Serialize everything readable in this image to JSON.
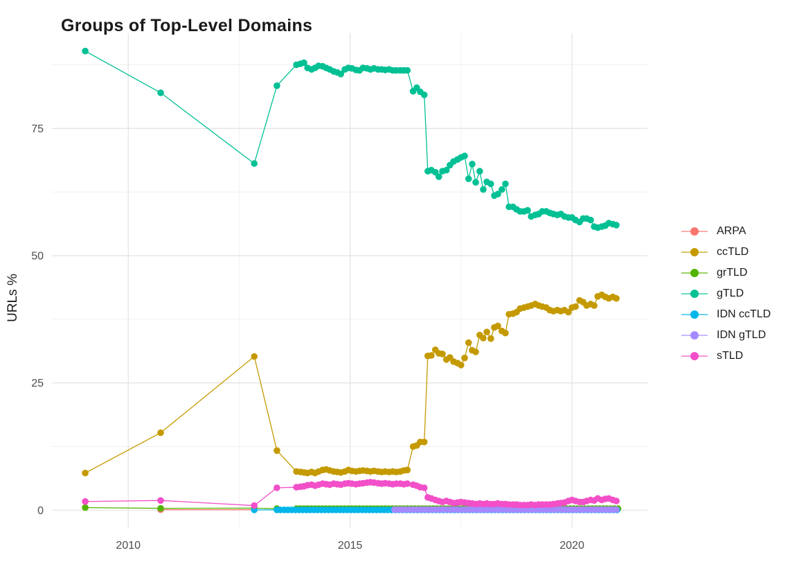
{
  "window": {
    "background": "#ffffff"
  },
  "header": {
    "title": "Groups of Top-Level Domains"
  },
  "chart_data": {
    "type": "line",
    "title": "Groups of Top-Level Domains",
    "xlabel": "",
    "ylabel": "URLs %",
    "xlim": [
      2008.28,
      2021.7
    ],
    "ylim": [
      -3.5,
      93.7
    ],
    "x_major_ticks": [
      2010,
      2015,
      2020
    ],
    "x_minor_ticks": [
      2012.5,
      2017.5
    ],
    "y_major_ticks": [
      0,
      25,
      50,
      75
    ],
    "y_minor_ticks": [
      12.5,
      37.5,
      62.5,
      87.5
    ],
    "grid": "major+minor",
    "legend_position": "right-middle",
    "style": {
      "major_grid_color": "#e2e2e2",
      "minor_grid_color": "#f0f0f0",
      "tick_label_color": "#4d4d4d",
      "point_radius": 4.8,
      "line_width": 1.3
    },
    "series": [
      {
        "name": "ARPA",
        "color": "#F8766D",
        "points": [
          [
            2010.73,
            0.1
          ],
          [
            2012.84,
            0.1
          ]
        ]
      },
      {
        "name": "ccTLD",
        "color": "#C49A00",
        "points": [
          [
            2009.03,
            7.3
          ],
          [
            2010.73,
            15.2
          ],
          [
            2012.84,
            30.2
          ],
          [
            2013.35,
            11.7
          ],
          [
            2013.79,
            7.6
          ],
          [
            2013.88,
            7.5
          ],
          [
            2013.96,
            7.4
          ],
          [
            2014.04,
            7.3
          ],
          [
            2014.13,
            7.5
          ],
          [
            2014.21,
            7.3
          ],
          [
            2014.29,
            7.6
          ],
          [
            2014.38,
            7.9
          ],
          [
            2014.46,
            8.0
          ],
          [
            2014.54,
            7.8
          ],
          [
            2014.63,
            7.6
          ],
          [
            2014.71,
            7.5
          ],
          [
            2014.79,
            7.4
          ],
          [
            2014.88,
            7.6
          ],
          [
            2014.96,
            7.9
          ],
          [
            2015.04,
            7.7
          ],
          [
            2015.13,
            7.6
          ],
          [
            2015.21,
            7.7
          ],
          [
            2015.29,
            7.8
          ],
          [
            2015.38,
            7.7
          ],
          [
            2015.46,
            7.6
          ],
          [
            2015.54,
            7.7
          ],
          [
            2015.63,
            7.6
          ],
          [
            2015.71,
            7.5
          ],
          [
            2015.79,
            7.6
          ],
          [
            2015.88,
            7.5
          ],
          [
            2015.96,
            7.6
          ],
          [
            2016.04,
            7.5
          ],
          [
            2016.13,
            7.6
          ],
          [
            2016.21,
            7.8
          ],
          [
            2016.29,
            7.9
          ],
          [
            2016.42,
            12.5
          ],
          [
            2016.5,
            12.7
          ],
          [
            2016.58,
            13.4
          ],
          [
            2016.67,
            13.4
          ],
          [
            2016.75,
            30.3
          ],
          [
            2016.83,
            30.4
          ],
          [
            2016.92,
            31.5
          ],
          [
            2017.0,
            30.8
          ],
          [
            2017.08,
            30.7
          ],
          [
            2017.17,
            29.6
          ],
          [
            2017.25,
            30.0
          ],
          [
            2017.33,
            29.2
          ],
          [
            2017.42,
            28.9
          ],
          [
            2017.5,
            28.5
          ],
          [
            2017.58,
            29.9
          ],
          [
            2017.67,
            32.9
          ],
          [
            2017.75,
            31.4
          ],
          [
            2017.83,
            31.1
          ],
          [
            2017.92,
            34.4
          ],
          [
            2018.0,
            33.8
          ],
          [
            2018.08,
            35.0
          ],
          [
            2018.17,
            33.7
          ],
          [
            2018.25,
            35.9
          ],
          [
            2018.33,
            36.2
          ],
          [
            2018.42,
            35.2
          ],
          [
            2018.5,
            34.8
          ],
          [
            2018.58,
            38.5
          ],
          [
            2018.67,
            38.6
          ],
          [
            2018.75,
            38.9
          ],
          [
            2018.83,
            39.6
          ],
          [
            2018.92,
            39.8
          ],
          [
            2019.0,
            40.0
          ],
          [
            2019.08,
            40.2
          ],
          [
            2019.17,
            40.5
          ],
          [
            2019.25,
            40.2
          ],
          [
            2019.33,
            40.0
          ],
          [
            2019.42,
            39.8
          ],
          [
            2019.5,
            39.3
          ],
          [
            2019.58,
            39.1
          ],
          [
            2019.67,
            39.3
          ],
          [
            2019.75,
            39.1
          ],
          [
            2019.83,
            39.3
          ],
          [
            2019.92,
            38.9
          ],
          [
            2020.0,
            39.8
          ],
          [
            2020.08,
            40.0
          ],
          [
            2020.17,
            41.2
          ],
          [
            2020.25,
            40.9
          ],
          [
            2020.33,
            40.2
          ],
          [
            2020.42,
            40.5
          ],
          [
            2020.5,
            40.2
          ],
          [
            2020.58,
            42.0
          ],
          [
            2020.67,
            42.3
          ],
          [
            2020.75,
            41.9
          ],
          [
            2020.83,
            41.6
          ],
          [
            2020.92,
            41.9
          ],
          [
            2021.0,
            41.6
          ]
        ]
      },
      {
        "name": "grTLD",
        "color": "#53B400",
        "points": [
          [
            2009.03,
            0.5
          ],
          [
            2010.73,
            0.35
          ],
          [
            2012.84,
            0.4
          ],
          [
            2013.35,
            0.3
          ]
        ],
        "fill": {
          "from": 2013.79,
          "to": 2021.0,
          "step": 0.0833,
          "value": 0.3
        }
      },
      {
        "name": "gTLD",
        "color": "#00C094",
        "points": [
          [
            2009.03,
            90.2
          ],
          [
            2010.73,
            82.0
          ],
          [
            2012.84,
            68.1
          ],
          [
            2013.35,
            83.4
          ],
          [
            2013.79,
            87.5
          ],
          [
            2013.88,
            87.7
          ],
          [
            2013.96,
            87.9
          ],
          [
            2014.04,
            86.9
          ],
          [
            2014.13,
            86.6
          ],
          [
            2014.21,
            86.9
          ],
          [
            2014.29,
            87.3
          ],
          [
            2014.38,
            87.2
          ],
          [
            2014.46,
            86.9
          ],
          [
            2014.54,
            86.6
          ],
          [
            2014.63,
            86.2
          ],
          [
            2014.71,
            86.0
          ],
          [
            2014.79,
            85.7
          ],
          [
            2014.88,
            86.6
          ],
          [
            2014.96,
            86.9
          ],
          [
            2015.04,
            86.8
          ],
          [
            2015.13,
            86.5
          ],
          [
            2015.21,
            86.4
          ],
          [
            2015.29,
            86.9
          ],
          [
            2015.38,
            86.8
          ],
          [
            2015.46,
            86.6
          ],
          [
            2015.54,
            86.8
          ],
          [
            2015.63,
            86.6
          ],
          [
            2015.71,
            86.6
          ],
          [
            2015.79,
            86.5
          ],
          [
            2015.88,
            86.6
          ],
          [
            2015.96,
            86.4
          ],
          [
            2016.04,
            86.4
          ],
          [
            2016.13,
            86.4
          ],
          [
            2016.21,
            86.4
          ],
          [
            2016.29,
            86.4
          ],
          [
            2016.42,
            82.3
          ],
          [
            2016.5,
            83.0
          ],
          [
            2016.58,
            82.2
          ],
          [
            2016.67,
            81.6
          ],
          [
            2016.75,
            66.6
          ],
          [
            2016.83,
            66.8
          ],
          [
            2016.92,
            66.4
          ],
          [
            2017.0,
            65.5
          ],
          [
            2017.08,
            66.6
          ],
          [
            2017.17,
            66.8
          ],
          [
            2017.25,
            67.8
          ],
          [
            2017.33,
            68.5
          ],
          [
            2017.42,
            68.9
          ],
          [
            2017.5,
            69.3
          ],
          [
            2017.58,
            69.6
          ],
          [
            2017.67,
            65.1
          ],
          [
            2017.75,
            68.0
          ],
          [
            2017.83,
            64.4
          ],
          [
            2017.92,
            66.6
          ],
          [
            2018.0,
            63.0
          ],
          [
            2018.08,
            64.5
          ],
          [
            2018.17,
            64.1
          ],
          [
            2018.25,
            61.8
          ],
          [
            2018.33,
            62.1
          ],
          [
            2018.42,
            63.0
          ],
          [
            2018.5,
            64.1
          ],
          [
            2018.58,
            59.6
          ],
          [
            2018.67,
            59.6
          ],
          [
            2018.75,
            59.1
          ],
          [
            2018.83,
            58.7
          ],
          [
            2018.92,
            58.7
          ],
          [
            2019.0,
            58.9
          ],
          [
            2019.08,
            57.7
          ],
          [
            2019.17,
            58.0
          ],
          [
            2019.25,
            58.2
          ],
          [
            2019.33,
            58.7
          ],
          [
            2019.42,
            58.7
          ],
          [
            2019.5,
            58.4
          ],
          [
            2019.58,
            58.2
          ],
          [
            2019.67,
            58.0
          ],
          [
            2019.75,
            58.2
          ],
          [
            2019.83,
            57.7
          ],
          [
            2019.92,
            57.5
          ],
          [
            2020.0,
            57.5
          ],
          [
            2020.08,
            57.0
          ],
          [
            2020.17,
            56.6
          ],
          [
            2020.25,
            57.3
          ],
          [
            2020.33,
            57.3
          ],
          [
            2020.42,
            57.0
          ],
          [
            2020.5,
            55.7
          ],
          [
            2020.58,
            55.5
          ],
          [
            2020.67,
            55.7
          ],
          [
            2020.75,
            55.9
          ],
          [
            2020.83,
            56.4
          ],
          [
            2020.92,
            56.2
          ],
          [
            2021.0,
            56.0
          ]
        ]
      },
      {
        "name": "IDN ccTLD",
        "color": "#00B6EB",
        "points": [
          [
            2012.84,
            0.05
          ]
        ],
        "fill": {
          "from": 2013.35,
          "to": 2021.0,
          "step": 0.0833,
          "value": 0.05
        }
      },
      {
        "name": "IDN gTLD",
        "color": "#A58AFF",
        "points": [],
        "fill": {
          "from": 2016.0,
          "to": 2021.0,
          "step": 0.0833,
          "value": 0.12
        }
      },
      {
        "name": "sTLD",
        "color": "#F24FC8",
        "points": [
          [
            2009.03,
            1.7
          ],
          [
            2010.73,
            1.9
          ],
          [
            2012.84,
            0.9
          ],
          [
            2013.35,
            4.4
          ],
          [
            2013.79,
            4.5
          ],
          [
            2013.88,
            4.6
          ],
          [
            2013.96,
            4.7
          ],
          [
            2014.04,
            4.9
          ],
          [
            2014.13,
            5.0
          ],
          [
            2014.21,
            4.8
          ],
          [
            2014.29,
            5.0
          ],
          [
            2014.38,
            5.2
          ],
          [
            2014.46,
            5.1
          ],
          [
            2014.54,
            5.0
          ],
          [
            2014.63,
            5.2
          ],
          [
            2014.71,
            5.1
          ],
          [
            2014.79,
            5.0
          ],
          [
            2014.88,
            5.2
          ],
          [
            2014.96,
            5.3
          ],
          [
            2015.04,
            5.2
          ],
          [
            2015.13,
            5.1
          ],
          [
            2015.21,
            5.2
          ],
          [
            2015.29,
            5.3
          ],
          [
            2015.38,
            5.4
          ],
          [
            2015.46,
            5.5
          ],
          [
            2015.54,
            5.4
          ],
          [
            2015.63,
            5.3
          ],
          [
            2015.71,
            5.2
          ],
          [
            2015.79,
            5.3
          ],
          [
            2015.88,
            5.2
          ],
          [
            2015.96,
            5.1
          ],
          [
            2016.04,
            5.2
          ],
          [
            2016.13,
            5.2
          ],
          [
            2016.21,
            5.1
          ],
          [
            2016.29,
            5.2
          ],
          [
            2016.42,
            5.0
          ],
          [
            2016.5,
            4.8
          ],
          [
            2016.58,
            4.5
          ],
          [
            2016.67,
            4.4
          ],
          [
            2016.75,
            2.5
          ],
          [
            2016.83,
            2.3
          ],
          [
            2016.92,
            2.0
          ],
          [
            2017.0,
            1.8
          ],
          [
            2017.08,
            1.6
          ],
          [
            2017.17,
            1.8
          ],
          [
            2017.25,
            1.6
          ],
          [
            2017.33,
            1.4
          ],
          [
            2017.42,
            1.5
          ],
          [
            2017.5,
            1.6
          ],
          [
            2017.58,
            1.5
          ],
          [
            2017.67,
            1.4
          ],
          [
            2017.75,
            1.3
          ],
          [
            2017.83,
            1.2
          ],
          [
            2017.92,
            1.3
          ],
          [
            2018.0,
            1.2
          ],
          [
            2018.08,
            1.3
          ],
          [
            2018.17,
            1.2
          ],
          [
            2018.25,
            1.2
          ],
          [
            2018.33,
            1.3
          ],
          [
            2018.42,
            1.2
          ],
          [
            2018.5,
            1.2
          ],
          [
            2018.58,
            1.1
          ],
          [
            2018.67,
            1.1
          ],
          [
            2018.75,
            1.1
          ],
          [
            2018.83,
            1.0
          ],
          [
            2018.92,
            1.0
          ],
          [
            2019.0,
            1.0
          ],
          [
            2019.08,
            1.1
          ],
          [
            2019.17,
            1.0
          ],
          [
            2019.25,
            1.1
          ],
          [
            2019.33,
            1.1
          ],
          [
            2019.42,
            1.1
          ],
          [
            2019.5,
            1.1
          ],
          [
            2019.58,
            1.2
          ],
          [
            2019.67,
            1.3
          ],
          [
            2019.75,
            1.4
          ],
          [
            2019.83,
            1.5
          ],
          [
            2019.92,
            1.8
          ],
          [
            2020.0,
            2.0
          ],
          [
            2020.08,
            1.8
          ],
          [
            2020.17,
            1.6
          ],
          [
            2020.25,
            1.6
          ],
          [
            2020.33,
            1.8
          ],
          [
            2020.42,
            2.0
          ],
          [
            2020.5,
            1.9
          ],
          [
            2020.58,
            2.3
          ],
          [
            2020.67,
            2.0
          ],
          [
            2020.75,
            2.2
          ],
          [
            2020.83,
            2.3
          ],
          [
            2020.92,
            2.0
          ],
          [
            2021.0,
            1.8
          ]
        ]
      }
    ]
  },
  "legend": {
    "entries": [
      "ARPA",
      "ccTLD",
      "grTLD",
      "gTLD",
      "IDN ccTLD",
      "IDN gTLD",
      "sTLD"
    ]
  },
  "axes": {
    "y_label": "URLs %",
    "y_tick_labels": [
      "0",
      "25",
      "50",
      "75"
    ],
    "x_tick_labels": [
      "2010",
      "2015",
      "2020"
    ]
  }
}
